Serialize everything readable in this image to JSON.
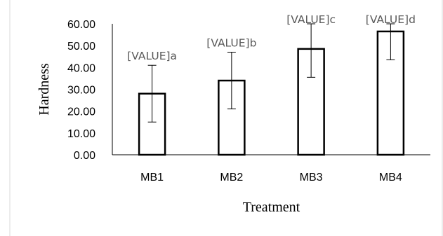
{
  "chart_data": {
    "type": "bar",
    "categories": [
      "MB1",
      "MB2",
      "MB3",
      "MB4"
    ],
    "values": [
      28.0,
      34.0,
      48.5,
      56.5
    ],
    "error": [
      13.0,
      13.0,
      13.0,
      13.0
    ],
    "data_labels": [
      "[VALUE]a",
      "[VALUE]b",
      "[VALUE]c",
      "[VALUE]d"
    ],
    "xlabel": "Treatment",
    "ylabel": "Hardness",
    "ylim": [
      0,
      60
    ],
    "yticks": [
      "0.00",
      "10.00",
      "20.00",
      "30.00",
      "40.00",
      "50.00",
      "60.00"
    ],
    "grid": false,
    "legend": "none",
    "colors": {
      "bar_fill": "#ffffff",
      "bar_stroke": "#000000",
      "data_label": "#595959"
    }
  }
}
